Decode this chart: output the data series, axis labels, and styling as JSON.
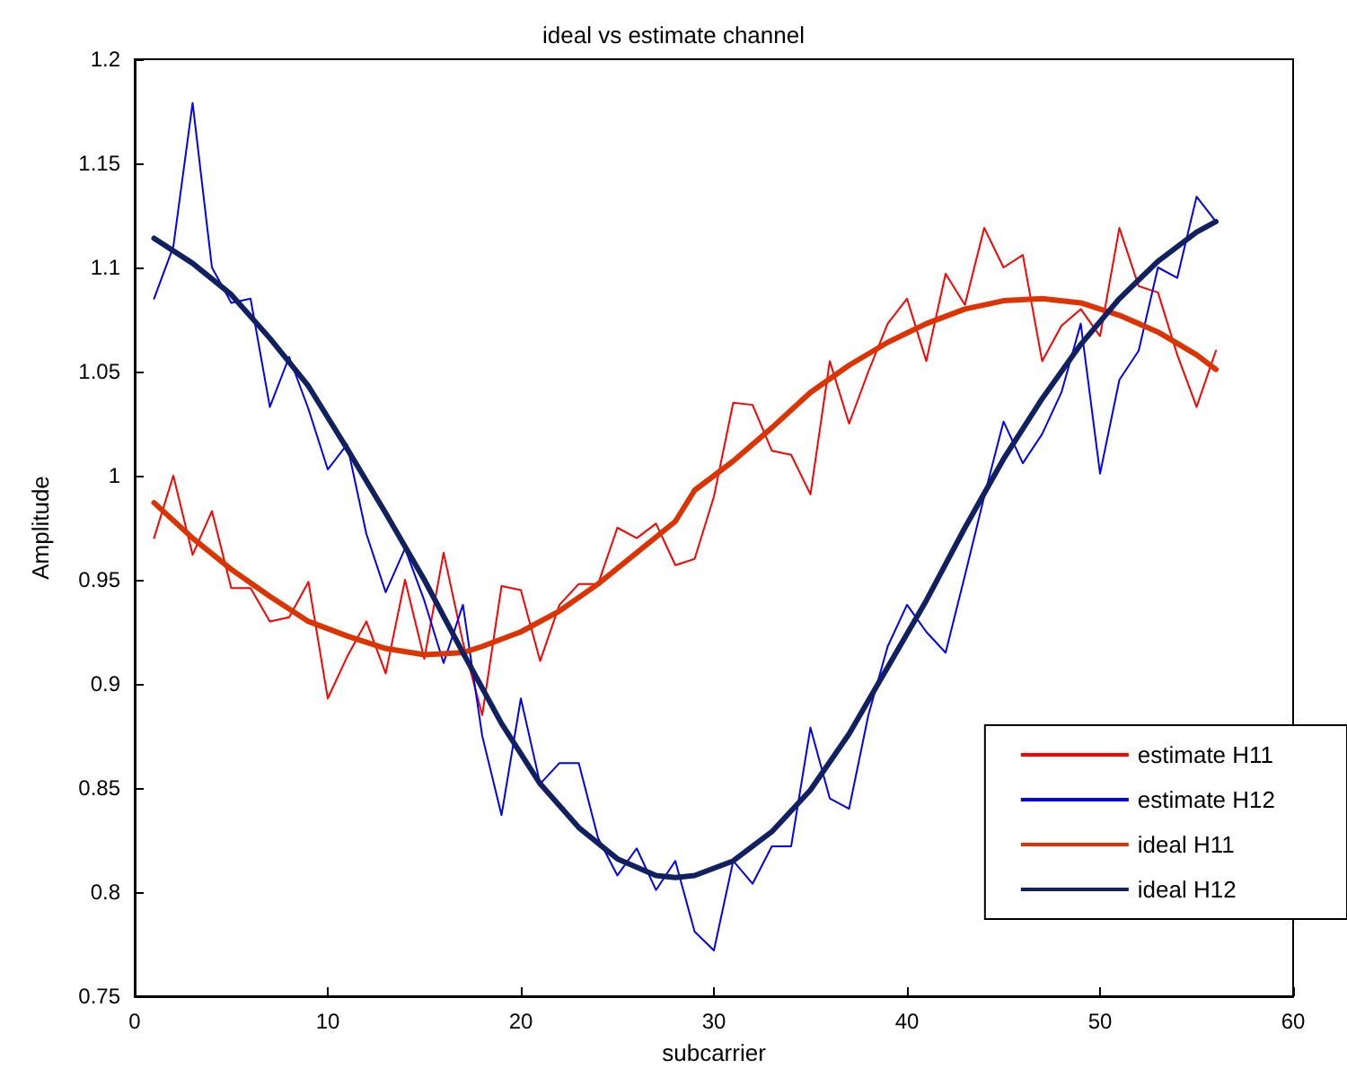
{
  "chart_data": {
    "type": "line",
    "title": "ideal vs estimate channel",
    "xlabel": "subcarrier",
    "ylabel": "Amplitude",
    "x": [
      1,
      2,
      3,
      4,
      5,
      6,
      7,
      8,
      9,
      10,
      11,
      12,
      13,
      14,
      15,
      16,
      17,
      18,
      19,
      20,
      21,
      22,
      23,
      24,
      25,
      26,
      27,
      28,
      29,
      30,
      31,
      32,
      33,
      34,
      35,
      36,
      37,
      38,
      39,
      40,
      41,
      42,
      43,
      44,
      45,
      46,
      47,
      48,
      49,
      50,
      51,
      52,
      53,
      54,
      55,
      56
    ],
    "series": [
      {
        "name": "estimate H11",
        "color": "#ff0000",
        "values": [
          0.97,
          1.0,
          0.962,
          0.983,
          0.946,
          0.946,
          0.93,
          0.932,
          0.949,
          0.893,
          0.913,
          0.93,
          0.905,
          0.95,
          0.912,
          0.963,
          0.92,
          0.885,
          0.947,
          0.945,
          0.911,
          0.938,
          0.948,
          0.948,
          0.975,
          0.97,
          0.977,
          0.957,
          0.96,
          0.99,
          1.035,
          1.034,
          1.012,
          1.01,
          0.991,
          1.055,
          1.025,
          1.05,
          1.073,
          1.085,
          1.055,
          1.097,
          1.082,
          1.119,
          1.1,
          1.106,
          1.055,
          1.072,
          1.08,
          1.067,
          1.119,
          1.091,
          1.088,
          1.058,
          1.033,
          1.06
        ]
      },
      {
        "name": "estimate H12",
        "color": "#0000ff",
        "values": [
          1.085,
          1.11,
          1.179,
          1.1,
          1.083,
          1.085,
          1.033,
          1.057,
          1.032,
          1.003,
          1.015,
          0.972,
          0.944,
          0.965,
          0.94,
          0.91,
          0.938,
          0.875,
          0.837,
          0.893,
          0.852,
          0.862,
          0.862,
          0.826,
          0.808,
          0.821,
          0.801,
          0.815,
          0.781,
          0.772,
          0.815,
          0.804,
          0.822,
          0.822,
          0.879,
          0.845,
          0.84,
          0.885,
          0.918,
          0.938,
          0.925,
          0.915,
          0.952,
          0.99,
          1.026,
          1.006,
          1.02,
          1.04,
          1.073,
          1.001,
          1.046,
          1.06,
          1.1,
          1.095,
          1.134,
          1.122
        ]
      },
      {
        "name": "ideal H11",
        "color": "#dd3300",
        "x": [
          1,
          3,
          5,
          7,
          9,
          11,
          13,
          15,
          17,
          18,
          20,
          22,
          24,
          26,
          28,
          29,
          31,
          33,
          35,
          37,
          39,
          41,
          43,
          45,
          47,
          49,
          51,
          53,
          55,
          56
        ],
        "values": [
          0.987,
          0.97,
          0.955,
          0.942,
          0.93,
          0.923,
          0.917,
          0.914,
          0.915,
          0.918,
          0.925,
          0.935,
          0.948,
          0.963,
          0.978,
          0.993,
          1.007,
          1.023,
          1.04,
          1.053,
          1.064,
          1.073,
          1.08,
          1.084,
          1.085,
          1.083,
          1.077,
          1.069,
          1.058,
          1.051
        ]
      },
      {
        "name": "ideal H12",
        "color": "#102060",
        "x": [
          1,
          3,
          5,
          7,
          9,
          11,
          13,
          15,
          17,
          19,
          21,
          23,
          25,
          27,
          28,
          29,
          31,
          33,
          35,
          37,
          39,
          41,
          43,
          45,
          47,
          49,
          51,
          53,
          55,
          56
        ],
        "values": [
          1.114,
          1.102,
          1.087,
          1.066,
          1.043,
          1.013,
          0.982,
          0.95,
          0.915,
          0.881,
          0.852,
          0.831,
          0.816,
          0.808,
          0.807,
          0.808,
          0.815,
          0.829,
          0.849,
          0.876,
          0.908,
          0.94,
          0.975,
          1.008,
          1.037,
          1.063,
          1.085,
          1.103,
          1.117,
          1.122
        ]
      }
    ],
    "xlim": [
      0,
      60
    ],
    "xticks": [
      0,
      10,
      20,
      30,
      40,
      50,
      60
    ],
    "ylim": [
      0.75,
      1.2
    ],
    "yticks": [
      0.75,
      0.8,
      0.85,
      0.9,
      0.95,
      1,
      1.05,
      1.1,
      1.15,
      1.2
    ],
    "grid": false,
    "legend": "bottom right",
    "marker": "none",
    "line_style": "solid"
  }
}
